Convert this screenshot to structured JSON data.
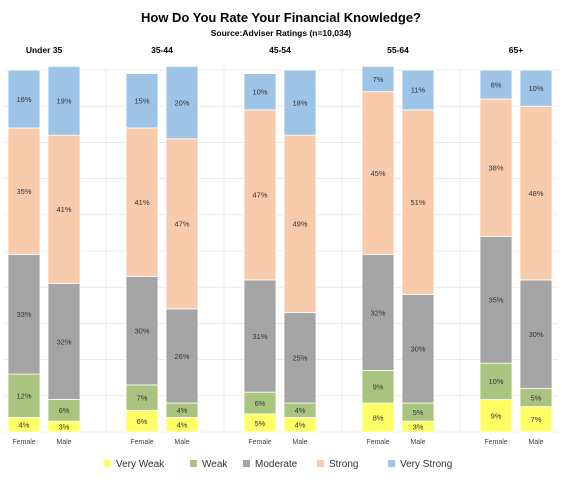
{
  "chart_data": {
    "type": "bar",
    "stacked": true,
    "normalized": true,
    "title": "How Do You Rate Your Financial Knowledge?",
    "subtitle": "Source:Adviser Ratings (n=10,034)",
    "groups": [
      "Under 35",
      "35-44",
      "45-54",
      "55-64",
      "65+"
    ],
    "categories": [
      "Female",
      "Male"
    ],
    "ylim": [
      0,
      100
    ],
    "grid": true,
    "legend_position": "bottom",
    "series": [
      {
        "name": "Very Weak",
        "color": "#ffff66",
        "values": [
          [
            4,
            3
          ],
          [
            6,
            4
          ],
          [
            5,
            4
          ],
          [
            8,
            3
          ],
          [
            9,
            7
          ]
        ]
      },
      {
        "name": "Weak",
        "color": "#a9c47f",
        "values": [
          [
            12,
            6
          ],
          [
            7,
            4
          ],
          [
            6,
            4
          ],
          [
            9,
            5
          ],
          [
            10,
            5
          ]
        ]
      },
      {
        "name": "Moderate",
        "color": "#a5a5a5",
        "values": [
          [
            33,
            32
          ],
          [
            30,
            26
          ],
          [
            31,
            25
          ],
          [
            32,
            30
          ],
          [
            35,
            30
          ]
        ]
      },
      {
        "name": "Strong",
        "color": "#f8cbad",
        "values": [
          [
            35,
            41
          ],
          [
            41,
            47
          ],
          [
            47,
            49
          ],
          [
            45,
            51
          ],
          [
            38,
            48
          ]
        ]
      },
      {
        "name": "Very Strong",
        "color": "#9dc3e6",
        "values": [
          [
            16,
            19
          ],
          [
            15,
            20
          ],
          [
            10,
            18
          ],
          [
            7,
            11
          ],
          [
            8,
            10
          ]
        ]
      }
    ],
    "data_label_suffix": "%"
  }
}
